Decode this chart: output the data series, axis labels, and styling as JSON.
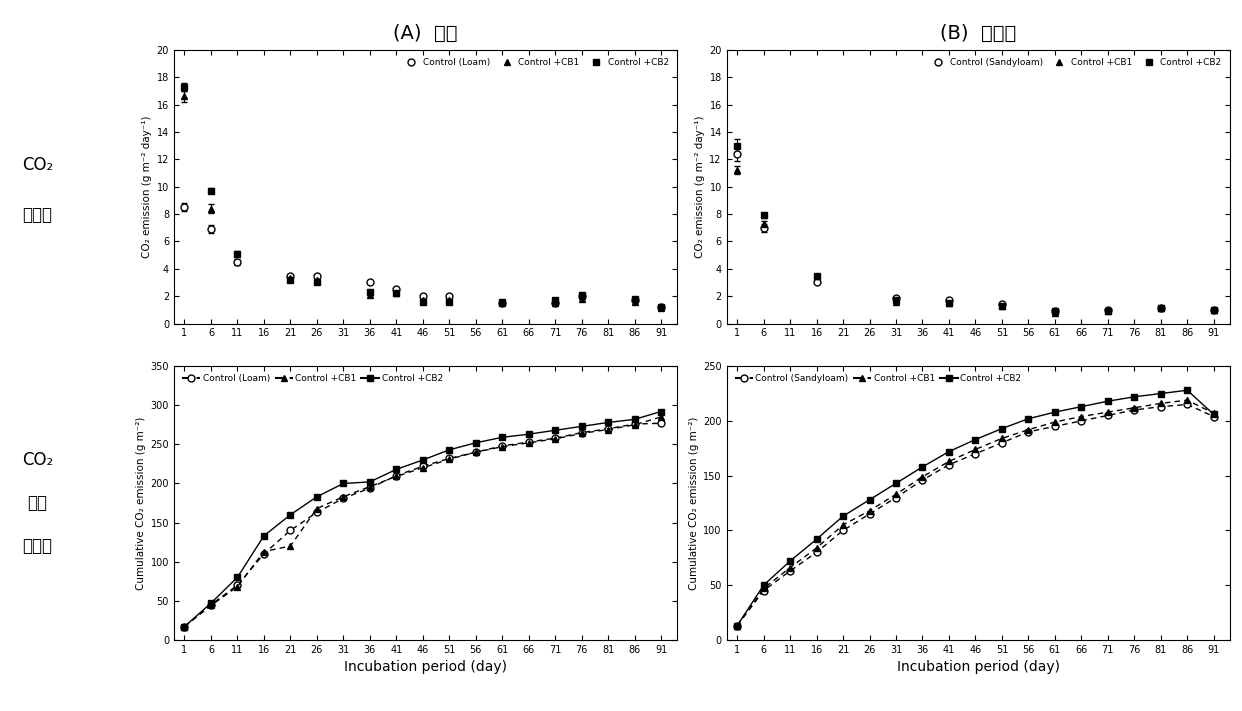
{
  "x_ticks": [
    1,
    6,
    11,
    16,
    21,
    26,
    31,
    36,
    41,
    46,
    51,
    56,
    61,
    66,
    71,
    76,
    81,
    86,
    91
  ],
  "title_A": "(A)  양토",
  "title_B": "(B)  사양토",
  "loam_daily": [
    8.5,
    6.9,
    4.5,
    null,
    3.5,
    3.5,
    null,
    3.0,
    2.5,
    2.0,
    2.0,
    null,
    1.5,
    null,
    1.5,
    2.0,
    null,
    1.7,
    1.2
  ],
  "loam_cb1_daily": [
    16.6,
    8.4,
    null,
    null,
    3.3,
    3.2,
    null,
    2.1,
    2.2,
    1.7,
    1.7,
    null,
    1.5,
    null,
    1.5,
    1.8,
    null,
    1.6,
    1.1
  ],
  "loam_cb2_daily": [
    17.3,
    9.7,
    5.1,
    null,
    3.2,
    3.0,
    null,
    2.3,
    2.2,
    1.6,
    1.6,
    null,
    1.6,
    null,
    1.7,
    2.1,
    null,
    1.8,
    1.2
  ],
  "sandy_daily": [
    12.4,
    7.0,
    null,
    3.0,
    null,
    null,
    1.9,
    null,
    1.7,
    null,
    1.4,
    null,
    0.9,
    null,
    1.0,
    null,
    1.1,
    null,
    1.0
  ],
  "sandy_cb1_daily": [
    11.2,
    7.3,
    null,
    3.5,
    null,
    null,
    1.6,
    null,
    1.5,
    null,
    1.3,
    null,
    0.8,
    null,
    0.9,
    null,
    1.1,
    null,
    1.0
  ],
  "sandy_cb2_daily": [
    13.0,
    7.9,
    null,
    3.5,
    null,
    null,
    1.7,
    null,
    1.5,
    null,
    1.3,
    null,
    0.9,
    null,
    0.9,
    null,
    1.1,
    null,
    1.0
  ],
  "loam_cum_x": [
    1,
    6,
    11,
    16,
    21,
    26,
    31,
    36,
    41,
    46,
    51,
    56,
    61,
    66,
    71,
    76,
    81,
    86,
    91
  ],
  "loam_cum": [
    17,
    45,
    70,
    110,
    140,
    163,
    181,
    194,
    210,
    222,
    232,
    240,
    248,
    253,
    258,
    265,
    270,
    276,
    277
  ],
  "loam_cb1_cum": [
    17,
    44,
    68,
    113,
    120,
    168,
    183,
    196,
    209,
    220,
    231,
    240,
    247,
    252,
    257,
    264,
    269,
    275,
    285
  ],
  "loam_cb2_cum": [
    17,
    47,
    80,
    133,
    160,
    183,
    200,
    202,
    218,
    230,
    243,
    252,
    259,
    263,
    268,
    273,
    278,
    282,
    292
  ],
  "sandy_cum_x": [
    1,
    6,
    11,
    16,
    21,
    26,
    31,
    36,
    41,
    46,
    51,
    56,
    61,
    66,
    71,
    76,
    81,
    86,
    91
  ],
  "sandy_cum": [
    13,
    45,
    63,
    80,
    100,
    115,
    130,
    146,
    160,
    170,
    180,
    190,
    195,
    200,
    205,
    210,
    213,
    215,
    204
  ],
  "sandy_cb1_cum": [
    13,
    47,
    66,
    84,
    105,
    118,
    133,
    149,
    163,
    174,
    184,
    192,
    199,
    204,
    208,
    212,
    216,
    219,
    207
  ],
  "sandy_cb2_cum": [
    13,
    50,
    72,
    92,
    113,
    128,
    143,
    158,
    172,
    183,
    193,
    202,
    208,
    213,
    218,
    222,
    225,
    228,
    206
  ],
  "ylabel_daily": "CO₂ emission (g m⁻² day⁻¹)",
  "ylabel_cum": "Cumulative CO₂ emission (g m⁻²)",
  "xlabel": "Incubation period (day)",
  "row_label_1a": "CO₂",
  "row_label_1b": "발생량",
  "row_label_2a": "CO₂",
  "row_label_2b": "누적",
  "row_label_2c": "발생량",
  "ylim_daily": [
    0,
    20
  ],
  "ylim_cum_loam": [
    0,
    350
  ],
  "ylim_cum_sandy": [
    0,
    250
  ],
  "bg_color": "#ffffff",
  "plot_bg": "#ffffff",
  "loam_err_ctrl": [
    0.3,
    0.3,
    0.2,
    0,
    0,
    0,
    0,
    0,
    0,
    0,
    0,
    0,
    0,
    0,
    0,
    0,
    0,
    0,
    0
  ],
  "loam_err_cb1": [
    0.4,
    0.3,
    0,
    0,
    0,
    0,
    0,
    0,
    0,
    0,
    0,
    0,
    0,
    0,
    0,
    0,
    0,
    0,
    0
  ],
  "loam_err_cb2": [
    0.3,
    0.2,
    0.2,
    0,
    0.1,
    0,
    0,
    0,
    0,
    0,
    0,
    0,
    0,
    0,
    0,
    0,
    0,
    0,
    0
  ],
  "sandy_err_ctrl": [
    0.5,
    0.3,
    0,
    0,
    0,
    0,
    0,
    0,
    0,
    0,
    0,
    0,
    0,
    0,
    0,
    0,
    0,
    0,
    0
  ],
  "sandy_err_cb1": [
    0.3,
    0.2,
    0,
    0,
    0,
    0,
    0,
    0,
    0,
    0,
    0,
    0,
    0,
    0,
    0,
    0,
    0,
    0,
    0
  ],
  "sandy_err_cb2": [
    0.5,
    0.2,
    0,
    0.1,
    0,
    0,
    0,
    0,
    0,
    0,
    0,
    0,
    0,
    0,
    0,
    0,
    0,
    0,
    0
  ]
}
